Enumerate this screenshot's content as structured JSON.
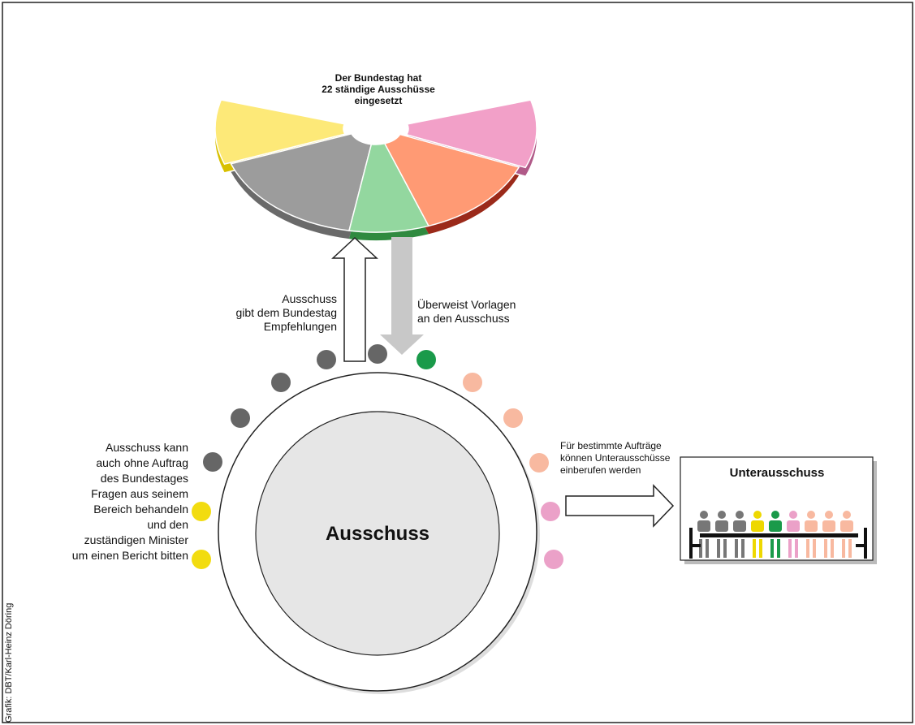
{
  "pie_caption": {
    "lines": [
      "Der Bundestag hat",
      "22 ständige Ausschüsse",
      "eingesetzt"
    ]
  },
  "up_arrow_label": {
    "lines": [
      "Ausschuss",
      "gibt dem Bundestag",
      "Empfehlungen"
    ]
  },
  "down_arrow_label": {
    "lines": [
      "Überweist Vorlagen",
      "an den Ausschuss"
    ]
  },
  "center_label": "Ausschuss",
  "left_note": {
    "lines": [
      "Ausschuss kann",
      "auch ohne Auftrag",
      "des Bundestages",
      "Fragen aus seinem",
      "Bereich behandeln",
      "und den",
      "zuständigen Minister",
      "um einen Bericht bitten"
    ]
  },
  "right_note": {
    "lines": [
      "Für bestimmte Aufträge",
      "können Unterausschüsse",
      "einberufen werden"
    ]
  },
  "subcommittee_title": "Unterausschuss",
  "credit": "Grafik: DBT/Karl-Heinz Döring"
}
